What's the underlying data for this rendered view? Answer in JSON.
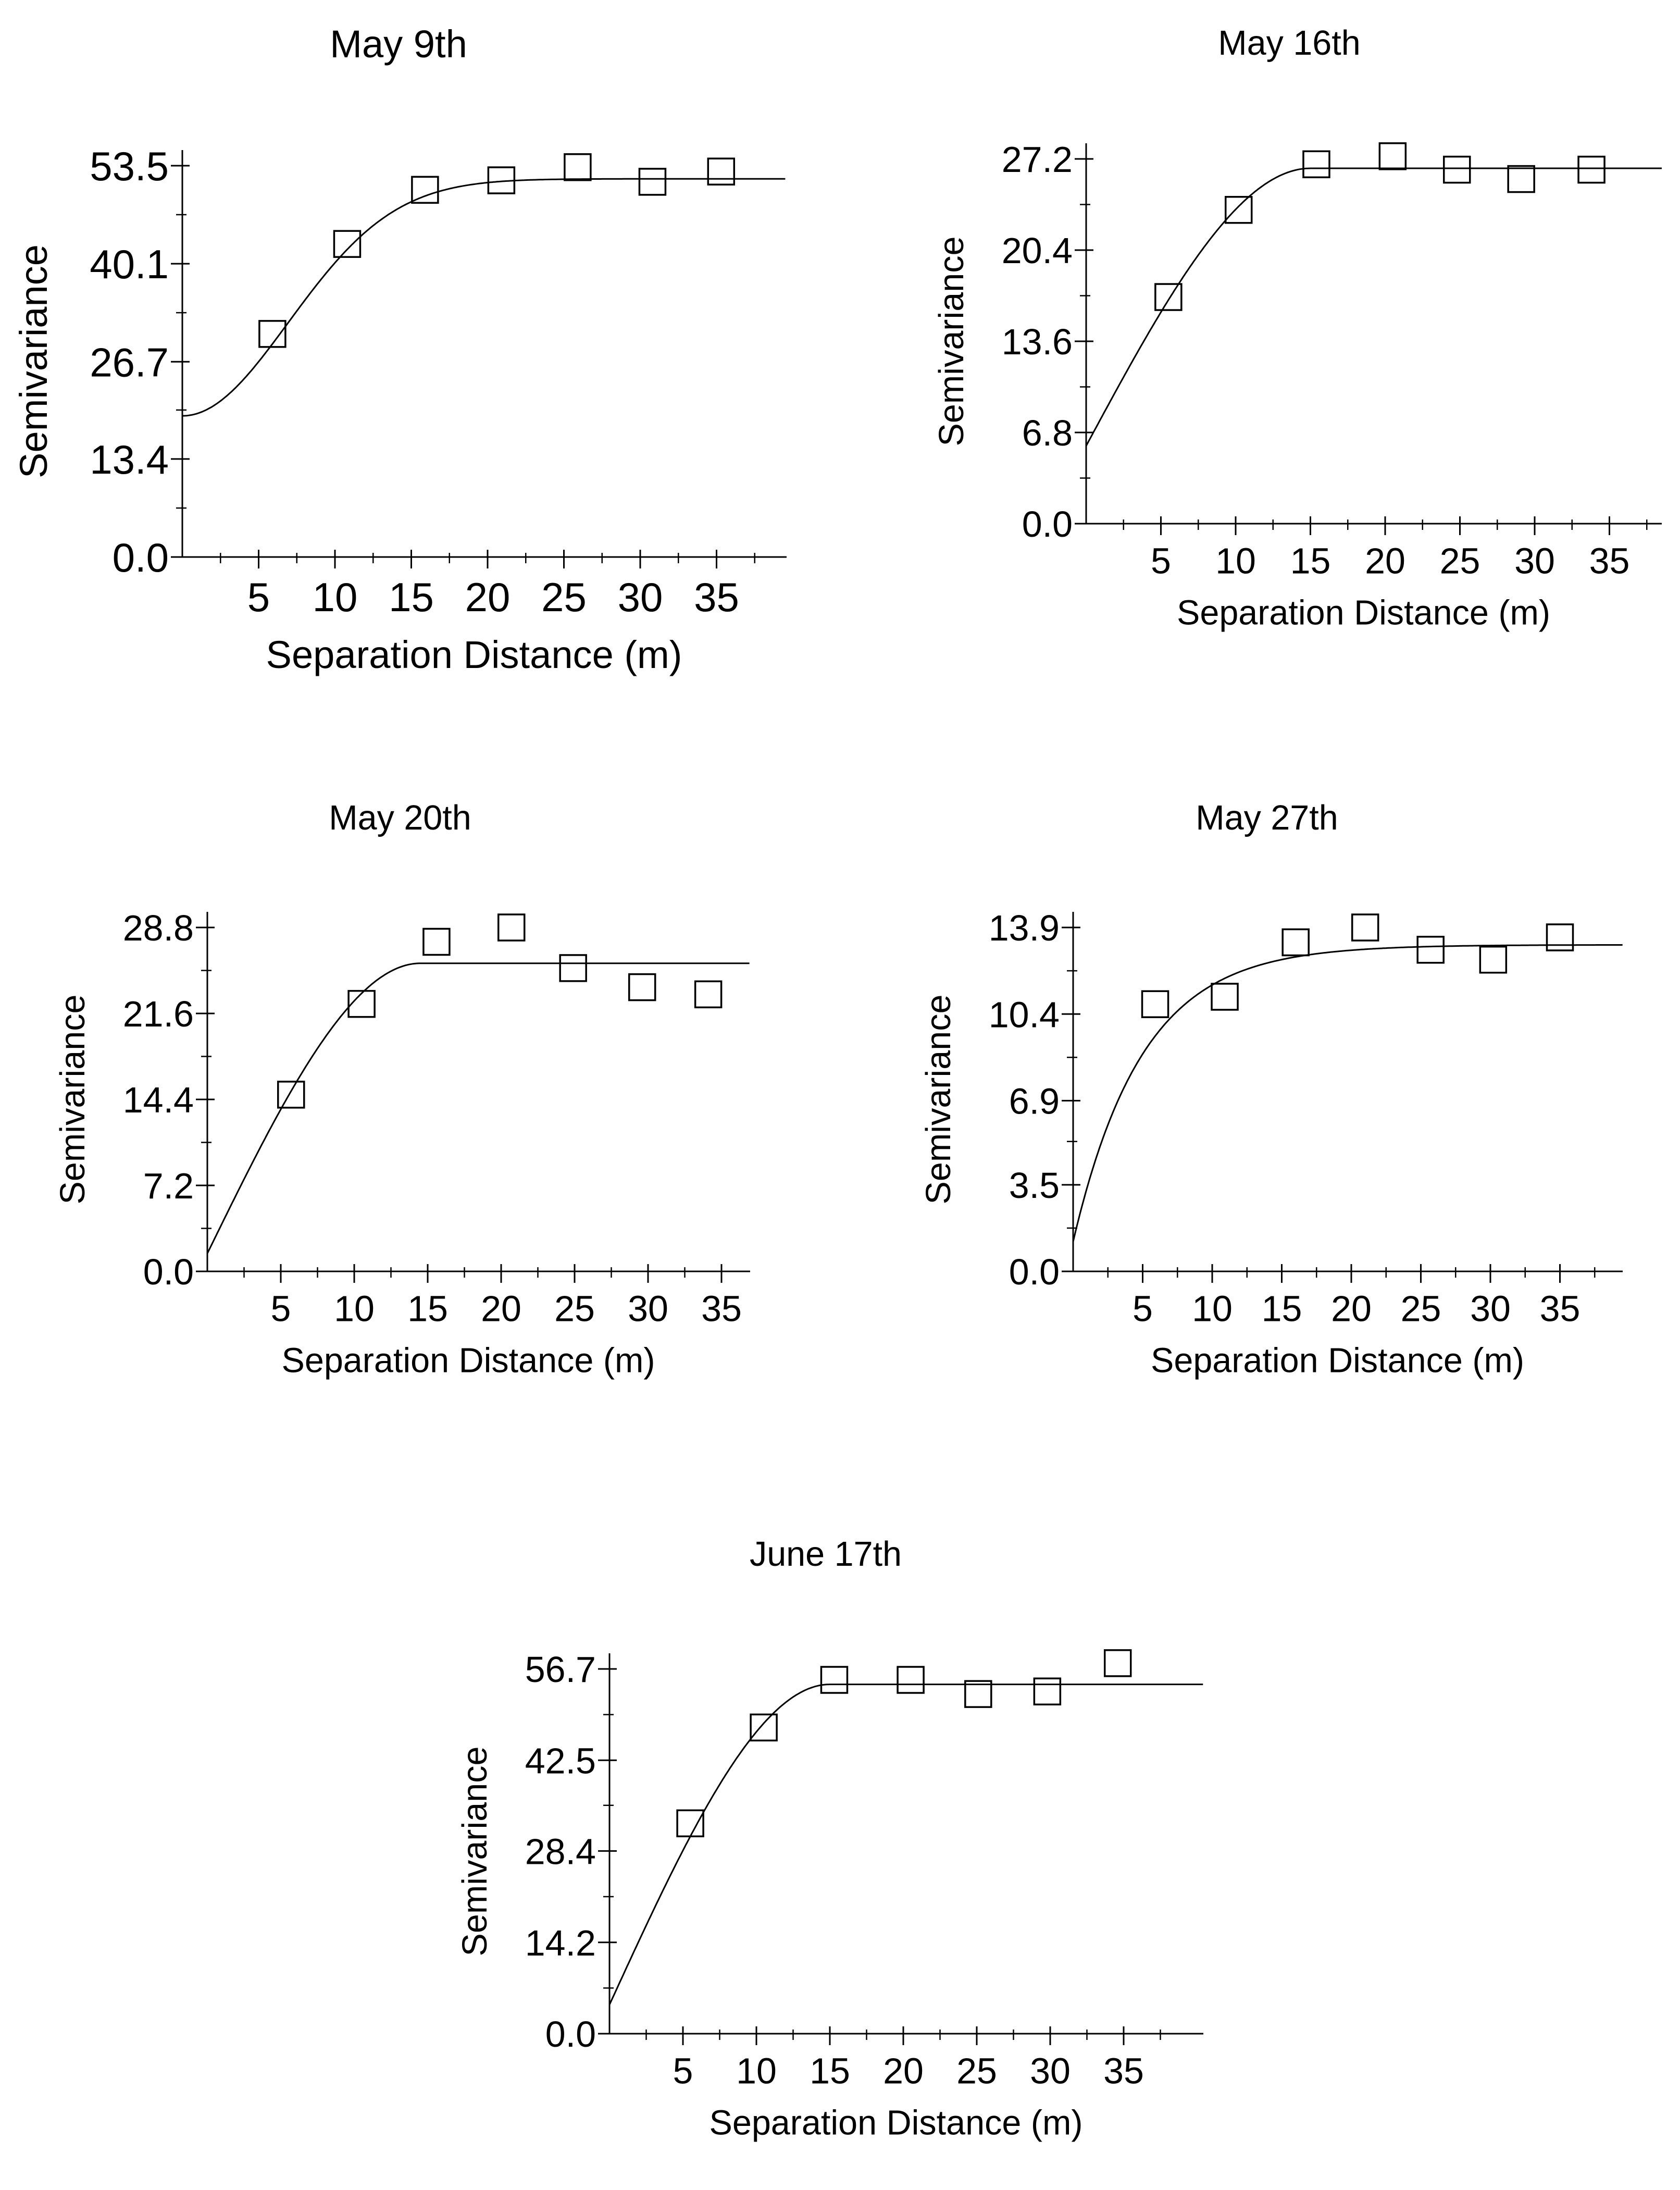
{
  "chart_data": [
    {
      "type": "scatter",
      "title": "May 9th",
      "xlabel": "Separation Distance (m)",
      "ylabel": "Semivariance",
      "xlim": [
        0,
        38
      ],
      "ylim": [
        0,
        53.5
      ],
      "xticks": [
        5,
        10,
        15,
        20,
        25,
        30,
        35
      ],
      "yticks": [
        0.0,
        13.4,
        26.7,
        40.1,
        53.5
      ],
      "ytick_labels": [
        "0.0",
        "13.4",
        "26.7",
        "40.1",
        "53.5"
      ],
      "grid": false,
      "points": [
        [
          5.9,
          30.5
        ],
        [
          10.8,
          42.8
        ],
        [
          15.9,
          50.2
        ],
        [
          20.9,
          51.5
        ],
        [
          25.9,
          53.3
        ],
        [
          30.8,
          51.3
        ],
        [
          35.3,
          52.7
        ]
      ],
      "model": {
        "type": "gaussian",
        "nugget": 19.3,
        "sill": 51.7,
        "range": 17.0
      }
    },
    {
      "type": "scatter",
      "title": "May 16th",
      "xlabel": "Separation Distance (m)",
      "ylabel": "Semivariance",
      "xlim": [
        0,
        38
      ],
      "ylim": [
        0,
        27.2
      ],
      "xticks": [
        5,
        10,
        15,
        20,
        25,
        30,
        35
      ],
      "yticks": [
        0.0,
        6.8,
        13.6,
        20.4,
        27.2
      ],
      "ytick_labels": [
        "0.0",
        "6.8",
        "13.6",
        "20.4",
        "27.2"
      ],
      "grid": false,
      "points": [
        [
          5.5,
          16.9
        ],
        [
          10.2,
          23.4
        ],
        [
          15.4,
          26.8
        ],
        [
          20.5,
          27.4
        ],
        [
          24.8,
          26.4
        ],
        [
          29.1,
          25.7
        ],
        [
          33.8,
          26.4
        ]
      ],
      "model": {
        "type": "spherical",
        "nugget": 5.8,
        "sill": 26.5,
        "range": 15.0
      }
    },
    {
      "type": "scatter",
      "title": "May 20th",
      "xlabel": "Separation Distance (m)",
      "ylabel": "Semivariance",
      "xlim": [
        0,
        37
      ],
      "ylim": [
        0,
        28.8
      ],
      "xticks": [
        5,
        10,
        15,
        20,
        25,
        30,
        35
      ],
      "yticks": [
        0.0,
        7.2,
        14.4,
        21.6,
        28.8
      ],
      "ytick_labels": [
        "0.0",
        "7.2",
        "14.4",
        "21.6",
        "28.8"
      ],
      "grid": false,
      "points": [
        [
          5.7,
          14.8
        ],
        [
          10.5,
          22.4
        ],
        [
          15.6,
          27.6
        ],
        [
          20.7,
          28.8
        ],
        [
          24.9,
          25.4
        ],
        [
          29.6,
          23.8
        ],
        [
          34.1,
          23.2
        ]
      ],
      "model": {
        "type": "spherical",
        "nugget": 1.5,
        "sill": 25.8,
        "range": 14.5
      }
    },
    {
      "type": "scatter",
      "title": "May 27th",
      "xlabel": "Separation Distance (m)",
      "ylabel": "Semivariance",
      "xlim": [
        0,
        39
      ],
      "ylim": [
        0,
        13.9
      ],
      "xticks": [
        5,
        10,
        15,
        20,
        25,
        30,
        35
      ],
      "yticks": [
        0.0,
        3.5,
        6.9,
        10.4,
        13.9
      ],
      "ytick_labels": [
        "0.0",
        "3.5",
        "6.9",
        "10.4",
        "13.9"
      ],
      "grid": false,
      "points": [
        [
          5.9,
          10.8
        ],
        [
          10.9,
          11.1
        ],
        [
          16.0,
          13.3
        ],
        [
          21.0,
          13.9
        ],
        [
          25.7,
          13.0
        ],
        [
          30.2,
          12.6
        ],
        [
          35.0,
          13.5
        ]
      ],
      "model": {
        "type": "exponential",
        "nugget": 1.2,
        "sill": 13.2,
        "range": 15.0
      }
    },
    {
      "type": "scatter",
      "title": "June 17th",
      "xlabel": "Separation Distance (m)",
      "ylabel": "Semivariance",
      "xlim": [
        0,
        38
      ],
      "ylim": [
        0,
        56.7
      ],
      "xticks": [
        5,
        10,
        15,
        20,
        25,
        30,
        35
      ],
      "yticks": [
        0.0,
        14.2,
        28.4,
        42.5,
        56.7
      ],
      "ytick_labels": [
        "0.0",
        "14.2",
        "28.4",
        "42.5",
        "56.7"
      ],
      "grid": false,
      "points": [
        [
          5.5,
          32.7
        ],
        [
          10.5,
          47.6
        ],
        [
          15.3,
          55.0
        ],
        [
          20.5,
          55.0
        ],
        [
          25.1,
          52.8
        ],
        [
          29.8,
          53.2
        ],
        [
          34.6,
          57.6
        ]
      ],
      "model": {
        "type": "spherical",
        "nugget": 4.5,
        "sill": 54.3,
        "range": 15.0
      }
    }
  ]
}
